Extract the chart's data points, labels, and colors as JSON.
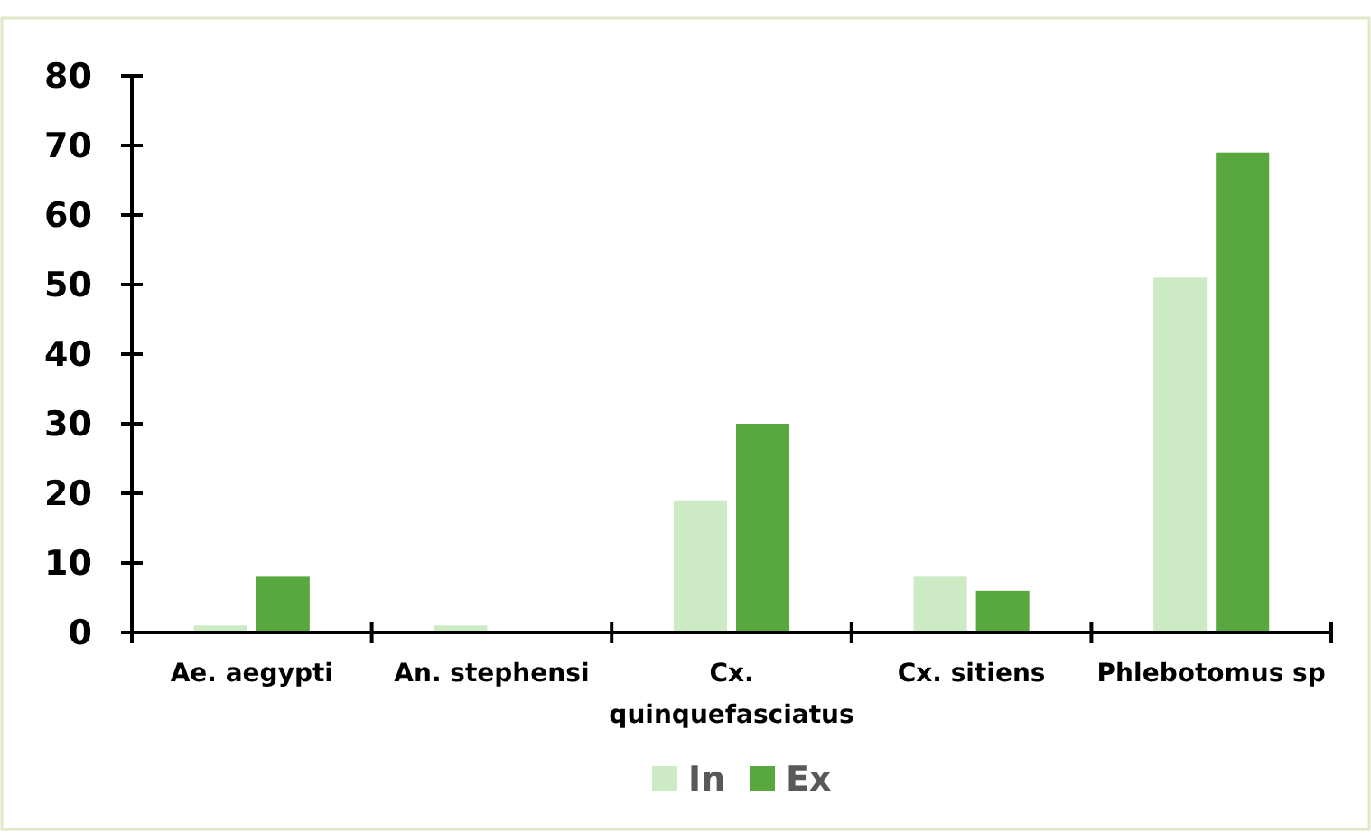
{
  "chart_data": {
    "type": "bar",
    "categories": [
      "Ae. aegypti",
      "An. stephensi",
      "Cx. quinquefasciatus",
      "Cx. sitiens",
      "Phlebotomus sp"
    ],
    "series": [
      {
        "name": "In",
        "color": "#cceac3",
        "values": [
          1,
          1,
          19,
          8,
          51
        ]
      },
      {
        "name": "Ex",
        "color": "#59a83d",
        "values": [
          8,
          0,
          30,
          6,
          69
        ]
      }
    ],
    "ylim": [
      0,
      80
    ],
    "yticks": [
      0,
      10,
      20,
      30,
      40,
      50,
      60,
      70,
      80
    ],
    "grid": false,
    "legend": "bottom"
  }
}
